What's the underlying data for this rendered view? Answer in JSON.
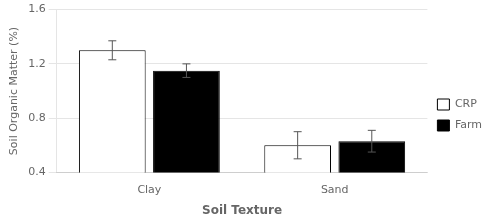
{
  "chart_data": {
    "type": "bar",
    "categories": [
      "Clay",
      "Sand"
    ],
    "series": [
      {
        "name": "CRP",
        "color": "#ffffff",
        "values": [
          1.3,
          0.6
        ],
        "errors": [
          0.07,
          0.1
        ]
      },
      {
        "name": "Farm",
        "color": "#000000",
        "values": [
          1.15,
          0.63
        ],
        "errors": [
          0.05,
          0.08
        ]
      }
    ],
    "xlabel": "Soil Texture",
    "ylabel": "Soil Organic Matter (%)",
    "ylim": [
      0.4,
      1.6
    ],
    "yticks": [
      0.4,
      0.8,
      1.2,
      1.6
    ],
    "grid": true,
    "legend": "right"
  }
}
